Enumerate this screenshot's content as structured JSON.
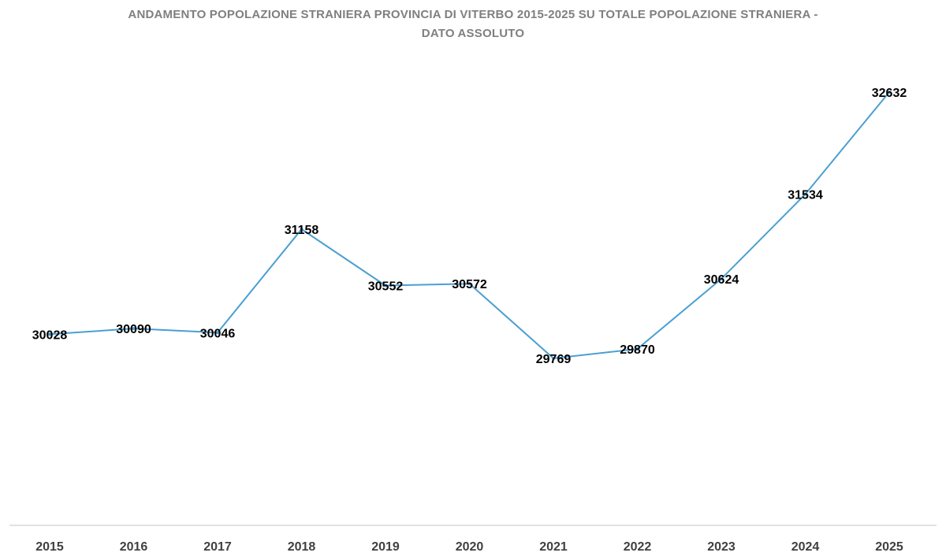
{
  "chart_data": {
    "type": "line",
    "title_line1": "ANDAMENTO POPOLAZIONE STRANIERA PROVINCIA DI VITERBO 2015-2025 SU TOTALE POPOLAZIONE STRANIERA -",
    "title_line2": "DATO ASSOLUTO",
    "categories": [
      "2015",
      "2016",
      "2017",
      "2018",
      "2019",
      "2020",
      "2021",
      "2022",
      "2023",
      "2024",
      "2025"
    ],
    "series": [
      {
        "values": [
          30028,
          30090,
          30046,
          31158,
          30552,
          30572,
          29769,
          29870,
          30624,
          31534,
          32632
        ],
        "color": "#4a9fd3"
      }
    ],
    "data_labels": [
      "30028",
      "30090",
      "30046",
      "31158",
      "30552",
      "30572",
      "29769",
      "29870",
      "30624",
      "31534",
      "32632"
    ],
    "ylim": [
      28000,
      33000
    ],
    "grid": false,
    "legend": "none",
    "axis_color": "#d9d9d9"
  }
}
